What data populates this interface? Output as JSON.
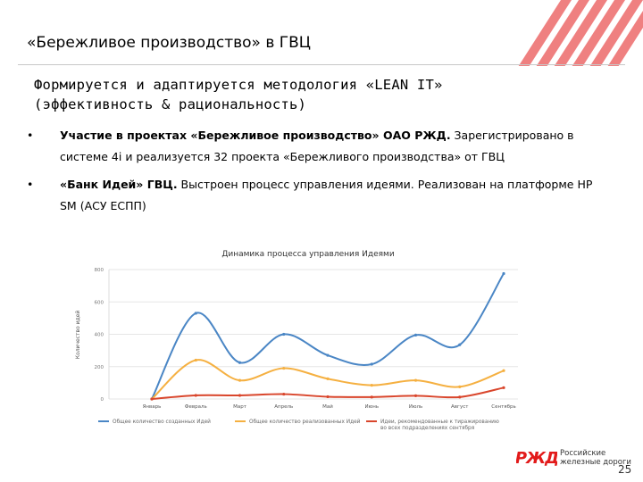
{
  "header": {
    "title": "«Бережливое производство» в ГВЦ"
  },
  "subtitle": {
    "line1": "Формируется и адаптируется методология «LEAN IT»",
    "line2": "(эффективность & рациональность)"
  },
  "bullets": [
    {
      "marker": "•",
      "bold": "Участие в проектах «Бережливое производство» ОАО РЖД.",
      "text": " Зарегистрировано в системе 4i и реализуется 32 проекта «Бережливого производства» от ГВЦ"
    },
    {
      "marker": "•",
      "bold": "«Банк Идей» ГВЦ.",
      "text": " Выстроен процесс управления идеями. Реализован на платформе HP SM (АСУ ЕСПП)"
    }
  ],
  "chart_data": {
    "type": "line",
    "title": "Динамика процесса управления Идеями",
    "ylabel": "Количество идей",
    "xlabel": "",
    "categories": [
      "Январь",
      "Февраль",
      "Март",
      "Апрель",
      "Май",
      "Июнь",
      "Июль",
      "Август",
      "Сентябрь"
    ],
    "ylim": [
      0,
      800
    ],
    "yticks": [
      0,
      200,
      400,
      600,
      800
    ],
    "grid": true,
    "legend_position": "bottom",
    "series": [
      {
        "name": "Общее количество созданных Идей",
        "color": "#4a86c5",
        "values": [
          0,
          530,
          225,
          400,
          270,
          215,
          395,
          335,
          775
        ]
      },
      {
        "name": "Общее количество реализованных Идей",
        "color": "#f5b041",
        "values": [
          0,
          240,
          115,
          190,
          125,
          85,
          115,
          75,
          175
        ]
      },
      {
        "name": "Идеи, рекомендованные к тиражированию во всех подразделениях сентября",
        "color": "#d9462c",
        "values": [
          0,
          22,
          22,
          30,
          14,
          12,
          20,
          12,
          70
        ]
      }
    ]
  },
  "footer": {
    "logo_text": "РЖД",
    "company_line1": "Российские",
    "company_line2": "железные дороги",
    "page_number": "25"
  },
  "colors": {
    "brand_red": "#e21a1a",
    "rule": "#c8c8c8"
  }
}
